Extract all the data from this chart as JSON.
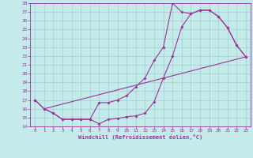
{
  "xlabel": "Windchill (Refroidissement éolien,°C)",
  "xlim": [
    -0.5,
    23.5
  ],
  "ylim": [
    14,
    28
  ],
  "xticks": [
    0,
    1,
    2,
    3,
    4,
    5,
    6,
    7,
    8,
    9,
    10,
    11,
    12,
    13,
    14,
    15,
    16,
    17,
    18,
    19,
    20,
    21,
    22,
    23
  ],
  "yticks": [
    14,
    15,
    16,
    17,
    18,
    19,
    20,
    21,
    22,
    23,
    24,
    25,
    26,
    27,
    28
  ],
  "bg_color": "#c5eaea",
  "line_color": "#993399",
  "grid_color": "#9dcfcf",
  "line1_x": [
    0,
    1,
    2,
    3,
    4,
    5,
    6,
    7,
    8,
    9,
    10,
    11,
    12,
    13,
    14,
    15,
    16,
    17,
    18,
    19,
    20,
    21,
    22,
    23
  ],
  "line1_y": [
    17.0,
    16.0,
    15.5,
    14.8,
    14.8,
    14.8,
    14.8,
    14.3,
    14.8,
    14.9,
    15.1,
    15.2,
    15.5,
    16.8,
    19.5,
    22.0,
    25.3,
    26.8,
    27.2,
    27.2,
    26.5,
    25.2,
    23.2,
    21.9
  ],
  "line2_x": [
    0,
    1,
    2,
    3,
    4,
    5,
    6,
    7,
    8,
    9,
    10,
    11,
    12,
    13,
    14,
    15,
    16,
    17,
    18,
    19,
    20,
    21,
    22,
    23
  ],
  "line2_y": [
    17.0,
    16.0,
    15.5,
    14.8,
    14.8,
    14.8,
    14.8,
    16.7,
    16.7,
    17.0,
    17.5,
    18.5,
    19.5,
    21.5,
    23.0,
    28.0,
    27.0,
    26.8,
    27.2,
    27.2,
    26.5,
    25.2,
    23.2,
    21.9
  ],
  "line3_x": [
    1,
    23
  ],
  "line3_y": [
    16.0,
    21.9
  ],
  "marker_size": 2.0,
  "line_width": 0.8
}
